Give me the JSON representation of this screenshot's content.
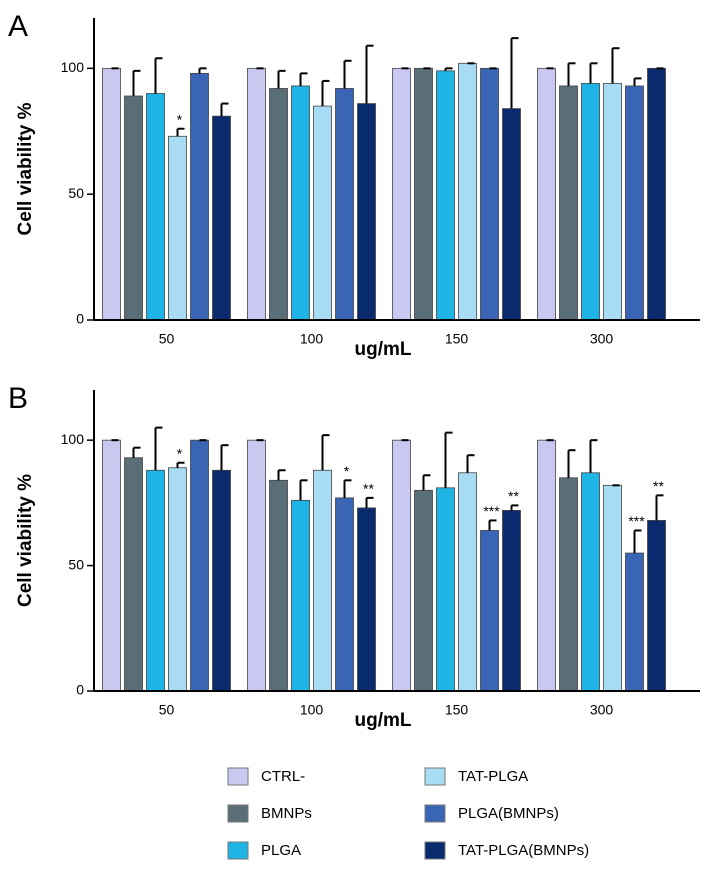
{
  "chart_data": [
    {
      "type": "bar",
      "title": "A",
      "xlabel": "ug/mL",
      "ylabel": "Cell viability %",
      "categories": [
        "50",
        "100",
        "150",
        "300"
      ],
      "ylim": [
        0,
        120
      ],
      "yticks": [
        0,
        50,
        100
      ],
      "series": [
        {
          "name": "CTRL-",
          "color": "#c8c8f0",
          "values": [
            100,
            100,
            100,
            100
          ],
          "errors": [
            0,
            0,
            0,
            0
          ]
        },
        {
          "name": "BMNPs",
          "color": "#5a6e78",
          "values": [
            89,
            92,
            100,
            93
          ],
          "errors": [
            10,
            7,
            0,
            9
          ]
        },
        {
          "name": "PLGA",
          "color": "#1eb4e6",
          "values": [
            90,
            93,
            99,
            94
          ],
          "errors": [
            14,
            5,
            1,
            8
          ]
        },
        {
          "name": "TAT-PLGA",
          "color": "#a8dcf5",
          "values": [
            73,
            85,
            102,
            94
          ],
          "errors": [
            3,
            10,
            0,
            14
          ]
        },
        {
          "name": "PLGA(BMNPs)",
          "color": "#3a64b4",
          "values": [
            98,
            92,
            100,
            93
          ],
          "errors": [
            2,
            11,
            0,
            3
          ]
        },
        {
          "name": "TAT-PLGA(BMNPs)",
          "color": "#0a2a6e",
          "values": [
            81,
            86,
            84,
            100
          ],
          "errors": [
            5,
            23,
            28,
            0
          ]
        }
      ],
      "annotations": [
        {
          "series": 3,
          "category": 0,
          "text": "*"
        }
      ]
    },
    {
      "type": "bar",
      "title": "B",
      "xlabel": "ug/mL",
      "ylabel": "Cell viability %",
      "categories": [
        "50",
        "100",
        "150",
        "300"
      ],
      "ylim": [
        0,
        120
      ],
      "yticks": [
        0,
        50,
        100
      ],
      "series": [
        {
          "name": "CTRL-",
          "color": "#c8c8f0",
          "values": [
            100,
            100,
            100,
            100
          ],
          "errors": [
            0,
            0,
            0,
            0
          ]
        },
        {
          "name": "BMNPs",
          "color": "#5a6e78",
          "values": [
            93,
            84,
            80,
            85
          ],
          "errors": [
            4,
            4,
            6,
            11
          ]
        },
        {
          "name": "PLGA",
          "color": "#1eb4e6",
          "values": [
            88,
            76,
            81,
            87
          ],
          "errors": [
            17,
            8,
            22,
            13
          ]
        },
        {
          "name": "TAT-PLGA",
          "color": "#a8dcf5",
          "values": [
            89,
            88,
            87,
            82
          ],
          "errors": [
            2,
            14,
            7,
            0
          ]
        },
        {
          "name": "PLGA(BMNPs)",
          "color": "#3a64b4",
          "values": [
            100,
            77,
            64,
            55
          ],
          "errors": [
            0,
            7,
            4,
            9
          ]
        },
        {
          "name": "TAT-PLGA(BMNPs)",
          "color": "#0a2a6e",
          "values": [
            88,
            73,
            72,
            68
          ],
          "errors": [
            10,
            4,
            2,
            10
          ]
        }
      ],
      "annotations": [
        {
          "series": 3,
          "category": 0,
          "text": "*"
        },
        {
          "series": 4,
          "category": 1,
          "text": "*"
        },
        {
          "series": 5,
          "category": 1,
          "text": "**"
        },
        {
          "series": 4,
          "category": 2,
          "text": "***"
        },
        {
          "series": 5,
          "category": 2,
          "text": "**"
        },
        {
          "series": 4,
          "category": 3,
          "text": "***"
        },
        {
          "series": 5,
          "category": 3,
          "text": "**"
        }
      ]
    }
  ]
}
